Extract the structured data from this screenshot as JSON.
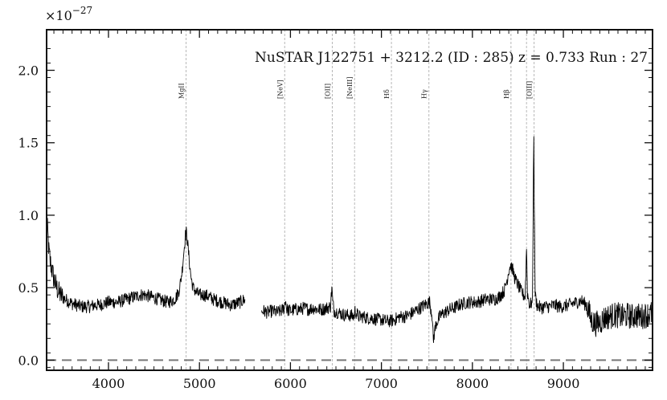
{
  "chart_data": {
    "type": "line",
    "title": "NuSTAR J122751 + 3212.2 (ID : 285)   z = 0.733   Run : 27",
    "xlabel": "",
    "ylabel": "",
    "y_scale_label": "×10",
    "y_scale_exponent": "−27",
    "xlim": [
      3320,
      9980
    ],
    "ylim": [
      -0.07,
      2.28
    ],
    "x_ticks": [
      4000,
      5000,
      6000,
      7000,
      8000,
      9000
    ],
    "x_tick_labels": [
      "4000",
      "5000",
      "6000",
      "7000",
      "8000",
      "9000"
    ],
    "y_ticks": [
      0.0,
      0.5,
      1.0,
      1.5,
      2.0
    ],
    "y_tick_labels": [
      "0.0",
      "0.5",
      "1.0",
      "1.5",
      "2.0"
    ],
    "zero_line": {
      "y": 0.0,
      "style": "dashed",
      "color": "#777777"
    },
    "emission_lines": [
      {
        "label": "MgII",
        "x": 4853
      },
      {
        "label": "[NeV]",
        "x": 5937
      },
      {
        "label": "[OII]",
        "x": 6460
      },
      {
        "label": "[NeIII]",
        "x": 6705
      },
      {
        "label": "Hδ",
        "x": 7110
      },
      {
        "label": "Hγ",
        "x": 7522
      },
      {
        "label": "Hβ",
        "x": 8424
      },
      {
        "label": "",
        "x": 8595
      },
      {
        "label": "[OIII]",
        "x": 8678
      }
    ],
    "series": [
      {
        "color": "#000000",
        "segments": [
          {
            "x": [
              3320,
              3330,
              3345,
              3360,
              3380,
              3400,
              3430,
              3460,
              3500,
              3550,
              3600,
              3650,
              3700,
              3750,
              3800,
              3850,
              3900,
              3950,
              4000,
              4050,
              4100,
              4150,
              4200,
              4250,
              4300,
              4350,
              4400,
              4450,
              4500,
              4550,
              4600,
              4650,
              4700,
              4740,
              4770,
              4790,
              4810,
              4830,
              4845,
              4855,
              4865,
              4880,
              4895,
              4910,
              4930,
              4960,
              5000,
              5050,
              5100,
              5150,
              5200,
              5250,
              5300,
              5350,
              5400,
              5450,
              5500
            ],
            "y": [
              1.0,
              0.9,
              0.75,
              0.68,
              0.62,
              0.56,
              0.5,
              0.46,
              0.43,
              0.41,
              0.39,
              0.38,
              0.37,
              0.37,
              0.37,
              0.38,
              0.38,
              0.39,
              0.4,
              0.4,
              0.4,
              0.41,
              0.42,
              0.43,
              0.44,
              0.45,
              0.45,
              0.44,
              0.43,
              0.42,
              0.41,
              0.4,
              0.41,
              0.43,
              0.47,
              0.53,
              0.62,
              0.76,
              0.86,
              0.88,
              0.84,
              0.74,
              0.64,
              0.56,
              0.5,
              0.47,
              0.45,
              0.45,
              0.44,
              0.42,
              0.41,
              0.4,
              0.39,
              0.38,
              0.39,
              0.4,
              0.42
            ]
          },
          {
            "x": [
              5680,
              5700,
              5750,
              5800,
              5850,
              5900,
              5930,
              5945,
              5960,
              6000,
              6050,
              6100,
              6150,
              6200,
              6250,
              6300,
              6350,
              6400,
              6440,
              6455,
              6465,
              6480,
              6520,
              6560,
              6600,
              6650,
              6700,
              6710,
              6750,
              6800,
              6850,
              6900,
              6950,
              7000,
              7050,
              7100,
              7150,
              7200,
              7250,
              7300,
              7350,
              7400,
              7450,
              7500,
              7530,
              7560,
              7570,
              7580,
              7600,
              7650,
              7700,
              7750,
              7800,
              7850,
              7900,
              7950,
              8000,
              8050,
              8100,
              8150,
              8200,
              8250,
              8300,
              8350,
              8380,
              8400,
              8420,
              8440,
              8470,
              8500,
              8530,
              8560,
              8580,
              8595,
              8605,
              8630,
              8660,
              8675,
              8680,
              8690,
              8710,
              8750,
              8800,
              8850,
              8900,
              8950,
              9000,
              9050,
              9100,
              9150,
              9200,
              9250,
              9280,
              9300,
              9350,
              9400,
              9450,
              9500,
              9550,
              9600,
              9650,
              9700,
              9750,
              9800,
              9850,
              9900,
              9950,
              9980
            ],
            "y": [
              0.33,
              0.34,
              0.33,
              0.34,
              0.33,
              0.34,
              0.36,
              0.42,
              0.35,
              0.34,
              0.35,
              0.35,
              0.36,
              0.35,
              0.36,
              0.35,
              0.35,
              0.36,
              0.37,
              0.5,
              0.4,
              0.34,
              0.33,
              0.32,
              0.31,
              0.31,
              0.3,
              0.34,
              0.3,
              0.3,
              0.29,
              0.29,
              0.28,
              0.28,
              0.27,
              0.27,
              0.28,
              0.3,
              0.3,
              0.31,
              0.33,
              0.35,
              0.37,
              0.39,
              0.4,
              0.3,
              0.12,
              0.18,
              0.25,
              0.31,
              0.33,
              0.35,
              0.36,
              0.38,
              0.39,
              0.4,
              0.4,
              0.4,
              0.41,
              0.42,
              0.42,
              0.42,
              0.44,
              0.48,
              0.55,
              0.62,
              0.66,
              0.63,
              0.56,
              0.52,
              0.48,
              0.45,
              0.44,
              0.78,
              0.46,
              0.38,
              0.4,
              1.58,
              1.1,
              0.45,
              0.38,
              0.36,
              0.37,
              0.37,
              0.38,
              0.37,
              0.37,
              0.38,
              0.39,
              0.4,
              0.41,
              0.38,
              0.34,
              0.28,
              0.25,
              0.26,
              0.29,
              0.3,
              0.31,
              0.31,
              0.3,
              0.31,
              0.3,
              0.31,
              0.3,
              0.31,
              0.32,
              0.32
            ]
          }
        ]
      }
    ]
  }
}
